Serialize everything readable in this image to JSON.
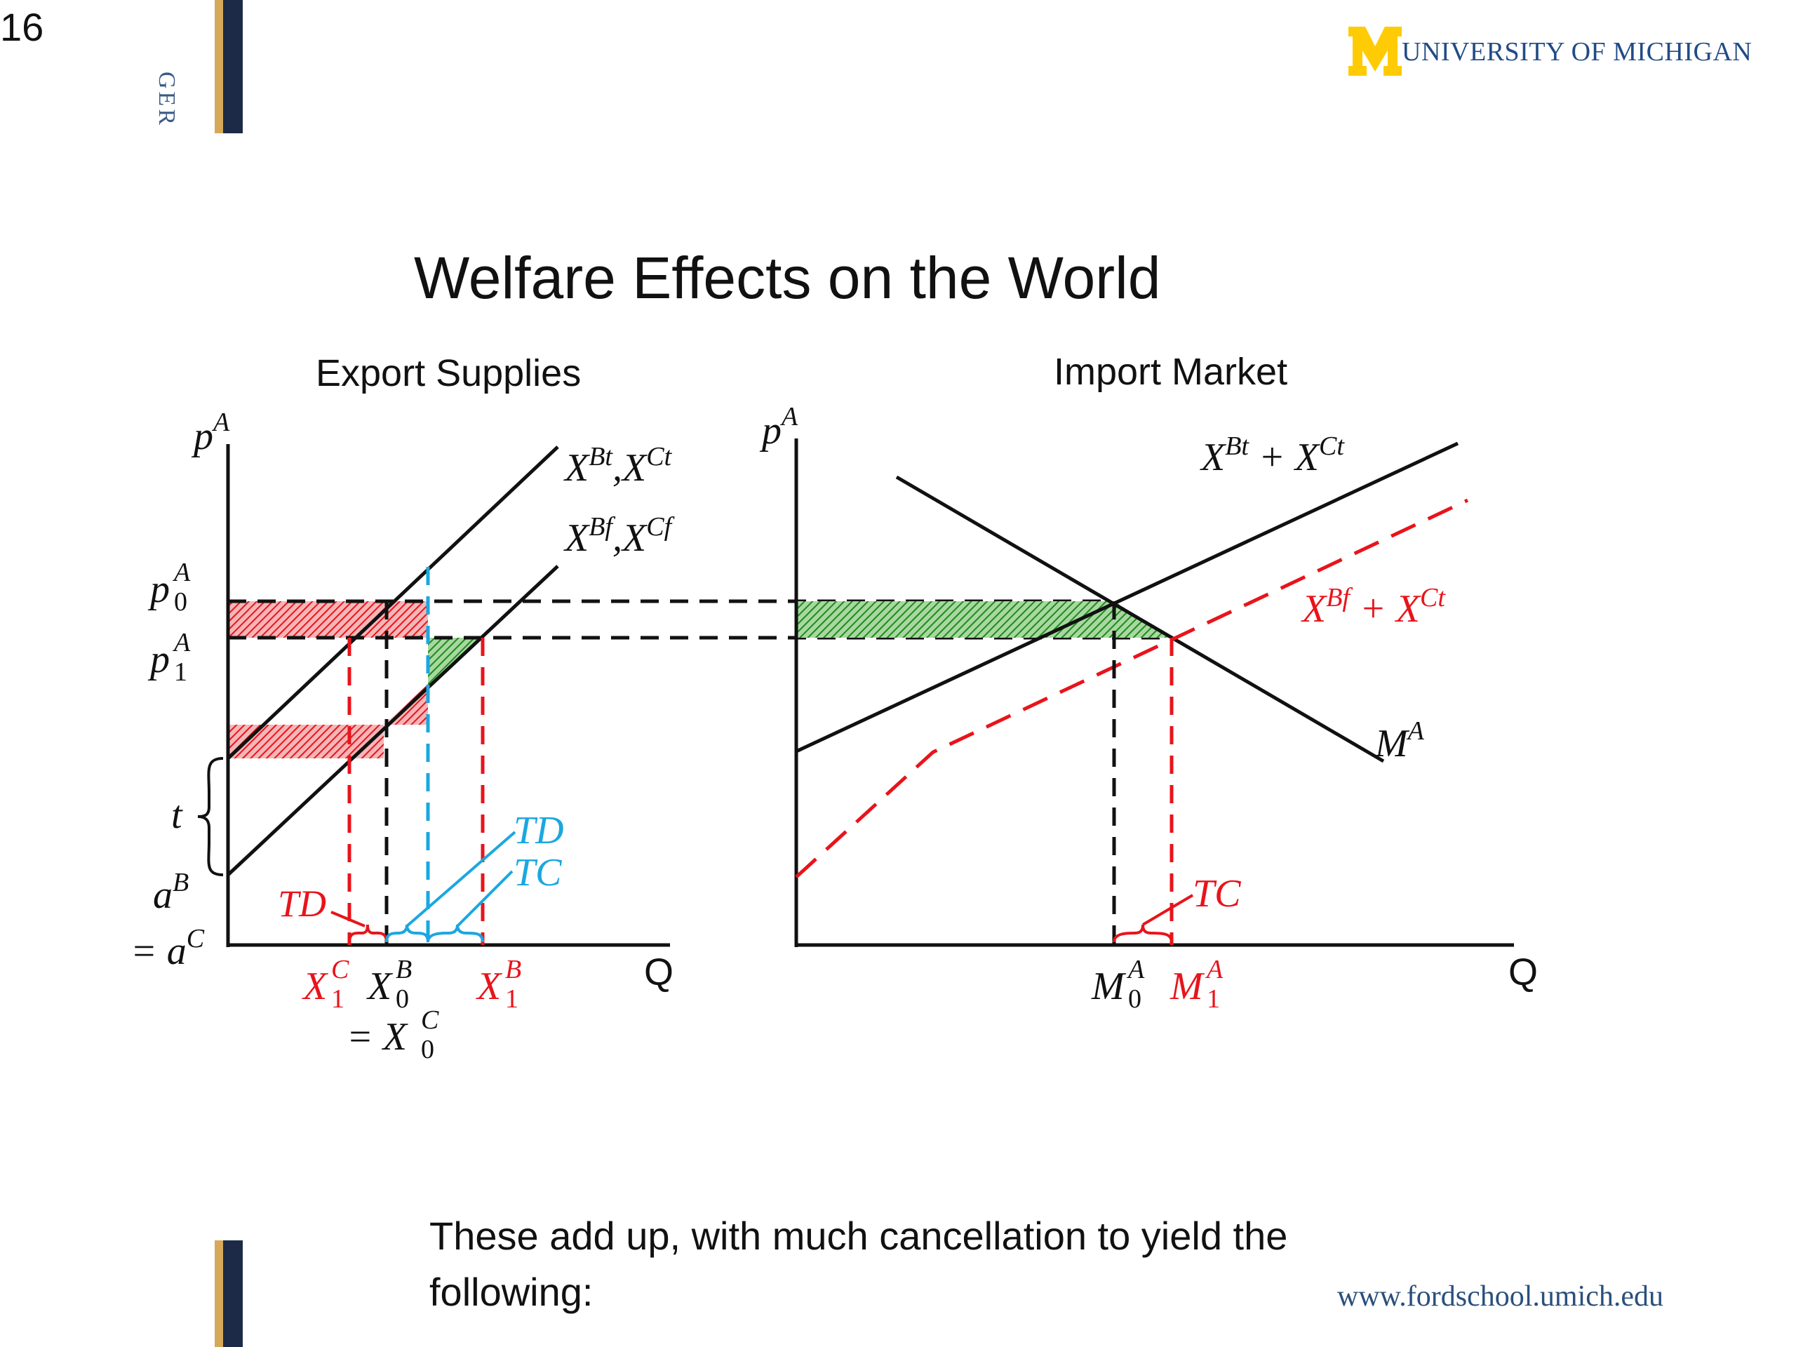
{
  "slide_number": "16",
  "side_label": "GER",
  "logo": {
    "text": "UNIVERSITY OF MICHIGAN",
    "brand_color": "#FFCB05",
    "text_color": "#214C86"
  },
  "title": "Welfare Effects on the World",
  "left_panel": {
    "heading": "Export Supplies",
    "y_axis": "p",
    "y_axis_sup": "A",
    "x_axis": "Q",
    "curve_labels": [
      {
        "base": "X",
        "sup": "Bt",
        "mid": ",X",
        "sup2": "Ct"
      },
      {
        "base": "X",
        "sup": "Bf",
        "mid": ",X",
        "sup2": "Cf"
      }
    ],
    "price_labels": [
      {
        "base": "p",
        "sub": "0",
        "sup": "A"
      },
      {
        "base": "p",
        "sub": "1",
        "sup": "A"
      }
    ],
    "t_label": "t",
    "a_label": {
      "base": "a",
      "sup": "B",
      "line2": "= a",
      "sup2": "C"
    },
    "td_red": "TD",
    "td_blue": "TD",
    "tc_blue": "TC",
    "x_ticks": [
      {
        "base": "X",
        "sub": "1",
        "sup": "C",
        "color": "#e8141b"
      },
      {
        "base": "X",
        "sub": "0",
        "sup": "B",
        "color": "#111111"
      },
      {
        "base": "X",
        "sub": "1",
        "sup": "B",
        "color": "#e8141b"
      }
    ],
    "x_tick_line2": {
      "prefix": "= X",
      "sub": "0",
      "sup": "C"
    }
  },
  "right_panel": {
    "heading": "Import Market",
    "y_axis": "p",
    "y_axis_sup": "A",
    "x_axis": "Q",
    "supply_label": {
      "base": "X",
      "sup": "Bt",
      "mid": " + X",
      "sup2": "Ct"
    },
    "supply_free_label": {
      "base": "X",
      "sup": "Bf",
      "mid": " + X",
      "sup2": "Ct"
    },
    "demand_label": {
      "base": "M",
      "sup": "A"
    },
    "tc_label": "TC",
    "x_ticks": [
      {
        "base": "M",
        "sub": "0",
        "sup": "A",
        "color": "#111111"
      },
      {
        "base": "M",
        "sub": "1",
        "sup": "A",
        "color": "#e8141b"
      }
    ]
  },
  "colors": {
    "red": "#e8141b",
    "blue": "#1ba7e0",
    "green": "#1e8a1e",
    "black": "#111111"
  },
  "body_text": "These add up, with much cancellation to yield the following:",
  "footer_url": "www.fordschool.umich.edu"
}
